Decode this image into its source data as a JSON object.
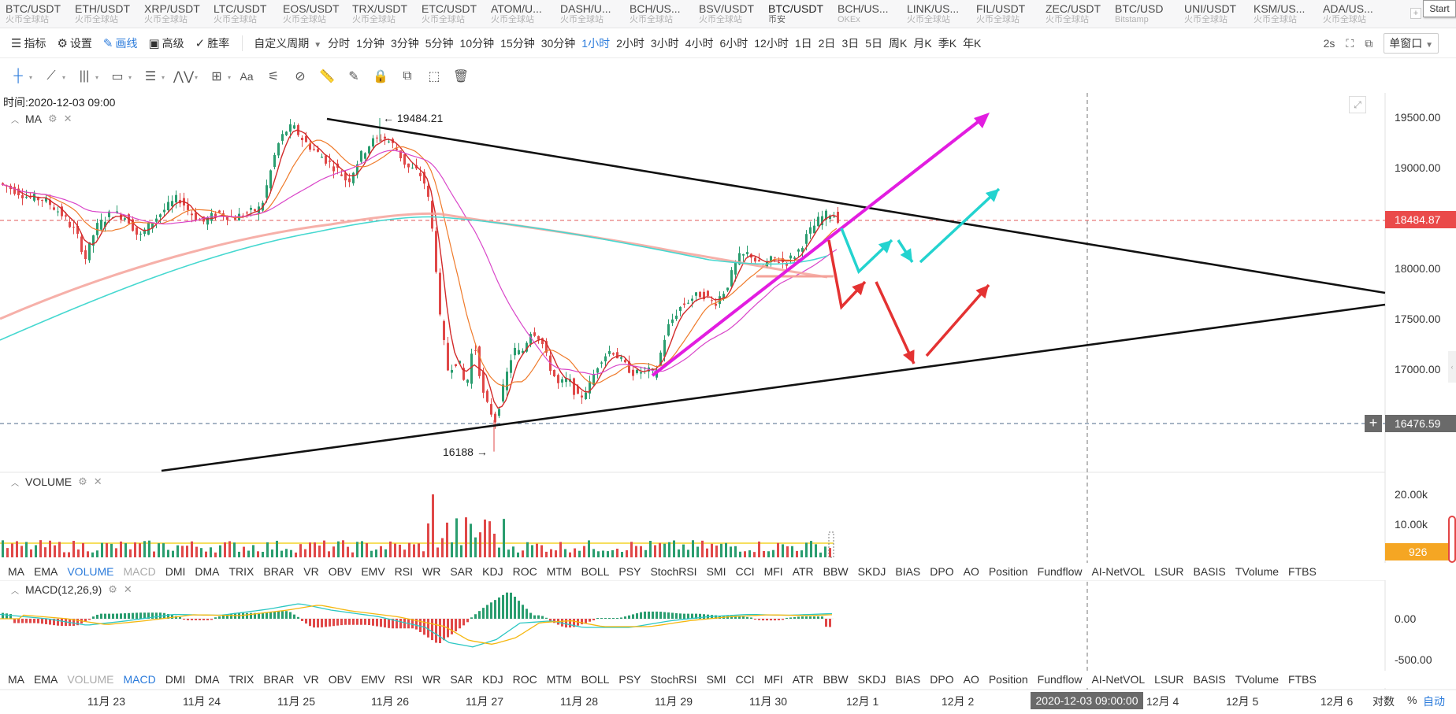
{
  "ticker_bar": {
    "tickers": [
      {
        "symbol": "BTC/USDT",
        "exchange": "火币全球站"
      },
      {
        "symbol": "ETH/USDT",
        "exchange": "火币全球站"
      },
      {
        "symbol": "XRP/USDT",
        "exchange": "火币全球站"
      },
      {
        "symbol": "LTC/USDT",
        "exchange": "火币全球站"
      },
      {
        "symbol": "EOS/USDT",
        "exchange": "火币全球站"
      },
      {
        "symbol": "TRX/USDT",
        "exchange": "火币全球站"
      },
      {
        "symbol": "ETC/USDT",
        "exchange": "火币全球站"
      },
      {
        "symbol": "ATOM/U...",
        "exchange": "火币全球站"
      },
      {
        "symbol": "DASH/U...",
        "exchange": "火币全球站"
      },
      {
        "symbol": "BCH/US...",
        "exchange": "火币全球站"
      },
      {
        "symbol": "BSV/USDT",
        "exchange": "火币全球站"
      },
      {
        "symbol": "BTC/USDT",
        "exchange": "币安"
      },
      {
        "symbol": "BCH/US...",
        "exchange": "OKEx"
      },
      {
        "symbol": "LINK/US...",
        "exchange": "火币全球站"
      },
      {
        "symbol": "FIL/USDT",
        "exchange": "火币全球站"
      },
      {
        "symbol": "ZEC/USDT",
        "exchange": "火币全球站"
      },
      {
        "symbol": "BTC/USD",
        "exchange": "Bitstamp"
      },
      {
        "symbol": "UNI/USDT",
        "exchange": "火币全球站"
      },
      {
        "symbol": "KSM/US...",
        "exchange": "火币全球站"
      },
      {
        "symbol": "ADA/US...",
        "exchange": "火币全球站"
      }
    ],
    "active_index": 11,
    "plus": "+",
    "start_label": "Start"
  },
  "toolbar": {
    "indicator": "指标",
    "settings": "设置",
    "draw": "画线",
    "advanced": "高级",
    "winrate": "胜率",
    "custom_period": "自定义周期",
    "periods": [
      "分时",
      "1分钟",
      "3分钟",
      "5分钟",
      "10分钟",
      "15分钟",
      "30分钟",
      "1小时",
      "2小时",
      "3小时",
      "4小时",
      "6小时",
      "12小时",
      "1日",
      "2日",
      "3日",
      "5日",
      "周K",
      "月K",
      "季K",
      "年K"
    ],
    "active_period": "1小时",
    "refresh": "2s",
    "single_window": "单窗口"
  },
  "draw_tools": [
    "crosshair-icon",
    "trend-line-icon",
    "vertical-lines-icon",
    "rectangle-icon",
    "horizontal-lines-icon",
    "wave-icon",
    "measure-icon",
    "text-icon",
    "fib-icon",
    "magnet-icon",
    "ruler-icon",
    "pen-icon",
    "lock-icon",
    "copy-icon",
    "screenshot-icon",
    "trash-icon"
  ],
  "main_pane": {
    "time_readout": "时间:2020-12-03 09:00",
    "indicator_name": "MA",
    "high_label": "← 19484.21",
    "low_label": "16188 →",
    "price_ticks": [
      "19500.00",
      "19000.00",
      "18500.00",
      "18000.00",
      "17500.00",
      "17000.00"
    ],
    "last_price": "18484.87",
    "cursor_price": "16476.59",
    "plus": "+"
  },
  "volume_pane": {
    "name": "VOLUME",
    "ticks": [
      "20.00k",
      "10.00k"
    ],
    "last_volume": "926"
  },
  "macd_pane": {
    "name": "MACD(12,26,9)",
    "ticks": [
      "0.00",
      "-500.00"
    ]
  },
  "indicator_tabs": [
    "MA",
    "EMA",
    "VOLUME",
    "MACD",
    "DMI",
    "DMA",
    "TRIX",
    "BRAR",
    "VR",
    "OBV",
    "EMV",
    "RSI",
    "WR",
    "SAR",
    "KDJ",
    "ROC",
    "MTM",
    "BOLL",
    "PSY",
    "StochRSI",
    "SMI",
    "CCI",
    "MFI",
    "ATR",
    "BBW",
    "SKDJ",
    "BIAS",
    "DPO",
    "AO",
    "Position",
    "Fundflow",
    "AI-NetVOL",
    "LSUR",
    "BASIS",
    "TVolume",
    "FTBS"
  ],
  "time_axis": {
    "labels": [
      "11月 23",
      "11月 24",
      "11月 25",
      "11月 26",
      "11月 27",
      "11月 28",
      "11月 29",
      "11月 30",
      "12月 1",
      "12月 2",
      "12月 4",
      "12月 5",
      "12月 6"
    ],
    "cursor_time": "2020-12-03 09:00:00",
    "log": "对数",
    "pct": "%",
    "auto": "自动"
  },
  "colors": {
    "up": "#2a9d6f",
    "down": "#e04848",
    "accent": "#2b7bdb",
    "ma_short": "#d22a2a",
    "ma_mid": "#ef7a2a",
    "ma_long": "#d946c9",
    "ma_200": "#f4a29a",
    "ma_cyan": "#46d8d0",
    "projection_magenta": "#e21de0",
    "projection_cyan": "#23d3cf",
    "projection_red": "#e43232"
  }
}
